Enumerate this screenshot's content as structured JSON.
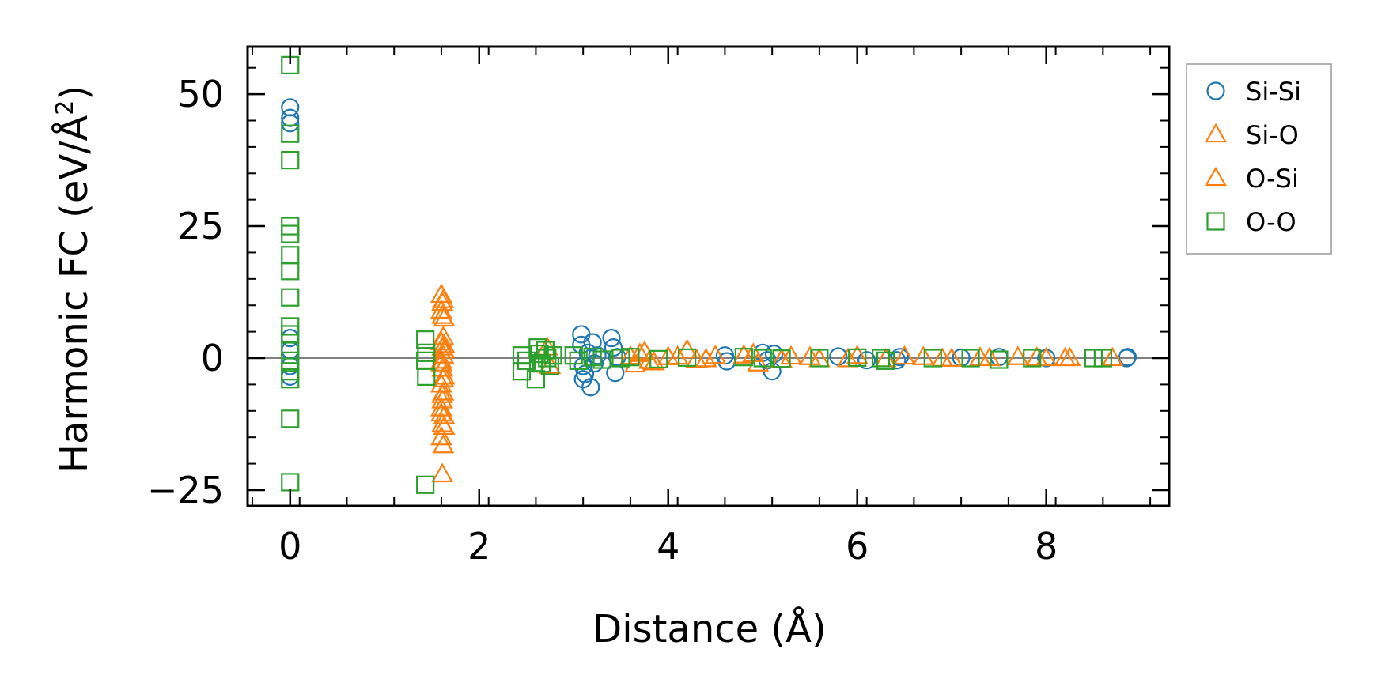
{
  "chart_data": {
    "type": "scatter",
    "title": "",
    "xlabel": "Distance (Å)",
    "ylabel": "Harmonic FC (eV/Å²)",
    "ylabel_base": "Harmonic FC (eV/Å",
    "ylabel_sup": "2",
    "ylabel_close": ")",
    "xlim": [
      -0.45,
      9.3
    ],
    "ylim": [
      -28,
      59
    ],
    "xticks": [
      0,
      2,
      4,
      6,
      8
    ],
    "xtick_labels": [
      "0",
      "2",
      "4",
      "6",
      "8"
    ],
    "yticks": [
      -25,
      0,
      25,
      50
    ],
    "ytick_labels": [
      "−25",
      "0",
      "25",
      "50"
    ],
    "zero_line": true,
    "grid": false,
    "legend_position": "outside-right-top",
    "series": [
      {
        "name": "Si-Si",
        "marker": "circle",
        "color": "#1f77b4",
        "points": [
          [
            0,
            47.5
          ],
          [
            0,
            45.5
          ],
          [
            0,
            44.5
          ],
          [
            0,
            3.8
          ],
          [
            0,
            1.5
          ],
          [
            0,
            -1.5
          ],
          [
            0,
            -3.5
          ],
          [
            3.08,
            4.5
          ],
          [
            3.08,
            2.5
          ],
          [
            3.1,
            -1.5
          ],
          [
            3.1,
            -4.0
          ],
          [
            3.12,
            -3.0
          ],
          [
            3.15,
            1.0
          ],
          [
            3.18,
            -5.5
          ],
          [
            3.2,
            3.0
          ],
          [
            3.22,
            -1.0
          ],
          [
            3.25,
            0.5
          ],
          [
            3.4,
            3.8
          ],
          [
            3.42,
            2.0
          ],
          [
            3.44,
            -2.8
          ],
          [
            3.46,
            0.2
          ],
          [
            4.6,
            0.5
          ],
          [
            4.62,
            -0.6
          ],
          [
            5.0,
            1.0
          ],
          [
            5.05,
            -0.4
          ],
          [
            5.1,
            -2.5
          ],
          [
            5.12,
            0.8
          ],
          [
            5.8,
            0.3
          ],
          [
            6.1,
            -0.4
          ],
          [
            6.42,
            -0.4
          ],
          [
            6.45,
            0.2
          ],
          [
            7.1,
            0.1
          ],
          [
            7.5,
            0.2
          ],
          [
            8.0,
            0.0
          ],
          [
            8.85,
            0.0
          ],
          [
            8.86,
            0.2
          ]
        ]
      },
      {
        "name": "Si-O",
        "marker": "triangle",
        "color": "#ff7f0e",
        "points": [
          [
            1.6,
            12.0
          ],
          [
            1.61,
            10.5
          ],
          [
            1.6,
            9.0
          ],
          [
            1.63,
            7.5
          ],
          [
            1.62,
            4.0
          ],
          [
            1.6,
            3.0
          ],
          [
            1.61,
            2.0
          ],
          [
            1.63,
            1.5
          ],
          [
            1.62,
            0.5
          ],
          [
            1.6,
            -0.5
          ],
          [
            1.61,
            -2.0
          ],
          [
            1.63,
            -3.5
          ],
          [
            1.6,
            -5.0
          ],
          [
            1.62,
            -6.5
          ],
          [
            1.61,
            -8.0
          ],
          [
            1.6,
            -9.5
          ],
          [
            1.63,
            -11.0
          ],
          [
            1.61,
            -12.5
          ],
          [
            1.6,
            -15.0
          ],
          [
            1.62,
            -16.5
          ],
          [
            1.61,
            -22.0
          ],
          [
            2.72,
            2.0
          ],
          [
            2.75,
            -1.5
          ],
          [
            3.6,
            0.3
          ],
          [
            3.65,
            -1.2
          ],
          [
            3.75,
            1.2
          ],
          [
            3.85,
            -0.8
          ],
          [
            4.0,
            0.2
          ],
          [
            4.2,
            1.5
          ],
          [
            4.3,
            -0.3
          ],
          [
            4.5,
            0.4
          ],
          [
            4.9,
            0.8
          ],
          [
            4.95,
            -1.0
          ],
          [
            5.3,
            0.3
          ],
          [
            5.6,
            -0.2
          ],
          [
            6.0,
            0.4
          ],
          [
            6.3,
            -0.2
          ],
          [
            6.7,
            0.2
          ],
          [
            7.0,
            -0.1
          ],
          [
            7.3,
            0.1
          ],
          [
            7.7,
            0.2
          ],
          [
            8.0,
            0.0
          ],
          [
            8.25,
            0.0
          ],
          [
            8.7,
            0.0
          ]
        ]
      },
      {
        "name": "O-Si",
        "marker": "triangle",
        "color": "#ff7f0e",
        "points": [
          [
            1.62,
            11.0
          ],
          [
            1.61,
            8.0
          ],
          [
            1.63,
            2.5
          ],
          [
            1.6,
            -1.0
          ],
          [
            1.62,
            -4.0
          ],
          [
            1.61,
            -7.0
          ],
          [
            1.6,
            -10.5
          ],
          [
            1.63,
            -13.0
          ],
          [
            3.7,
            0.8
          ],
          [
            3.8,
            -0.5
          ],
          [
            4.1,
            0.3
          ],
          [
            4.4,
            -0.2
          ],
          [
            4.8,
            0.5
          ],
          [
            5.2,
            -0.3
          ],
          [
            5.5,
            0.2
          ],
          [
            5.9,
            -0.2
          ],
          [
            6.5,
            0.3
          ],
          [
            6.9,
            -0.1
          ],
          [
            7.4,
            0.0
          ],
          [
            7.9,
            0.1
          ],
          [
            8.2,
            0.0
          ]
        ]
      },
      {
        "name": "O-O",
        "marker": "square",
        "color": "#2ca02c",
        "points": [
          [
            0,
            55.5
          ],
          [
            0,
            42.5
          ],
          [
            0,
            37.5
          ],
          [
            0,
            25.0
          ],
          [
            0,
            23.5
          ],
          [
            0,
            19.5
          ],
          [
            0,
            16.5
          ],
          [
            0,
            11.5
          ],
          [
            0,
            6.0
          ],
          [
            0,
            4.5
          ],
          [
            0,
            1.5
          ],
          [
            0,
            -0.5
          ],
          [
            0,
            -2.5
          ],
          [
            0,
            -4.0
          ],
          [
            0,
            -11.5
          ],
          [
            0,
            -23.5
          ],
          [
            1.43,
            3.5
          ],
          [
            1.44,
            1.0
          ],
          [
            1.43,
            -0.5
          ],
          [
            1.44,
            -3.5
          ],
          [
            1.43,
            -24.0
          ],
          [
            2.45,
            0.5
          ],
          [
            2.45,
            -2.5
          ],
          [
            2.5,
            -0.5
          ],
          [
            2.6,
            -4.0
          ],
          [
            2.62,
            2.0
          ],
          [
            2.64,
            0.8
          ],
          [
            2.66,
            -1.0
          ],
          [
            2.7,
            1.5
          ],
          [
            2.72,
            0.0
          ],
          [
            2.75,
            -1.5
          ],
          [
            2.78,
            0.5
          ],
          [
            3.0,
            0.5
          ],
          [
            3.05,
            -0.5
          ],
          [
            3.2,
            0.2
          ],
          [
            3.3,
            -0.3
          ],
          [
            3.5,
            0.0
          ],
          [
            3.6,
            0.2
          ],
          [
            3.9,
            -0.2
          ],
          [
            4.2,
            0.1
          ],
          [
            4.8,
            0.2
          ],
          [
            5.0,
            0.0
          ],
          [
            5.2,
            -0.1
          ],
          [
            5.6,
            0.0
          ],
          [
            6.0,
            0.1
          ],
          [
            6.25,
            0.0
          ],
          [
            6.3,
            -0.5
          ],
          [
            6.8,
            0.0
          ],
          [
            7.2,
            0.0
          ],
          [
            7.5,
            -0.3
          ],
          [
            7.85,
            0.0
          ],
          [
            8.5,
            0.0
          ],
          [
            8.6,
            0.0
          ]
        ]
      }
    ]
  }
}
